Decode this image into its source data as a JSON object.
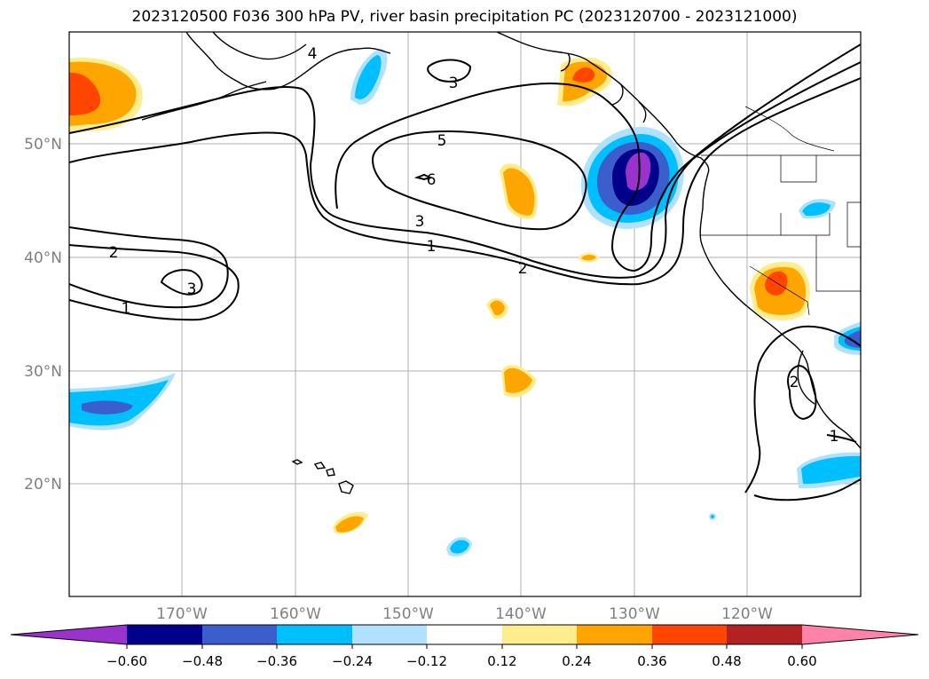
{
  "title": "2023120500 F036 300 hPa PV, river basin precipitation PC (2023120700 - 2023121000)",
  "lat_labels": [
    "50°N",
    "40°N",
    "30°N",
    "20°N"
  ],
  "lon_labels": [
    "170°W",
    "160°W",
    "150°W",
    "140°W",
    "130°W",
    "120°W"
  ],
  "colorbar": {
    "colors": [
      "#9933cc",
      "#00008b",
      "#3a5fcd",
      "#00bfff",
      "#b0e2ff",
      "#ffffff",
      "#ffec8b",
      "#ffa500",
      "#ff4500",
      "#b22222",
      "#ff82ab"
    ],
    "tick_labels": [
      "−0.60",
      "−0.48",
      "−0.36",
      "−0.24",
      "−0.12",
      "0.12",
      "0.24",
      "0.36",
      "0.48",
      "0.60"
    ]
  },
  "contour_labels": [
    "4",
    "3",
    "5",
    "6",
    "3",
    "1",
    "2",
    "2",
    "1",
    "3",
    "2",
    "1"
  ]
}
